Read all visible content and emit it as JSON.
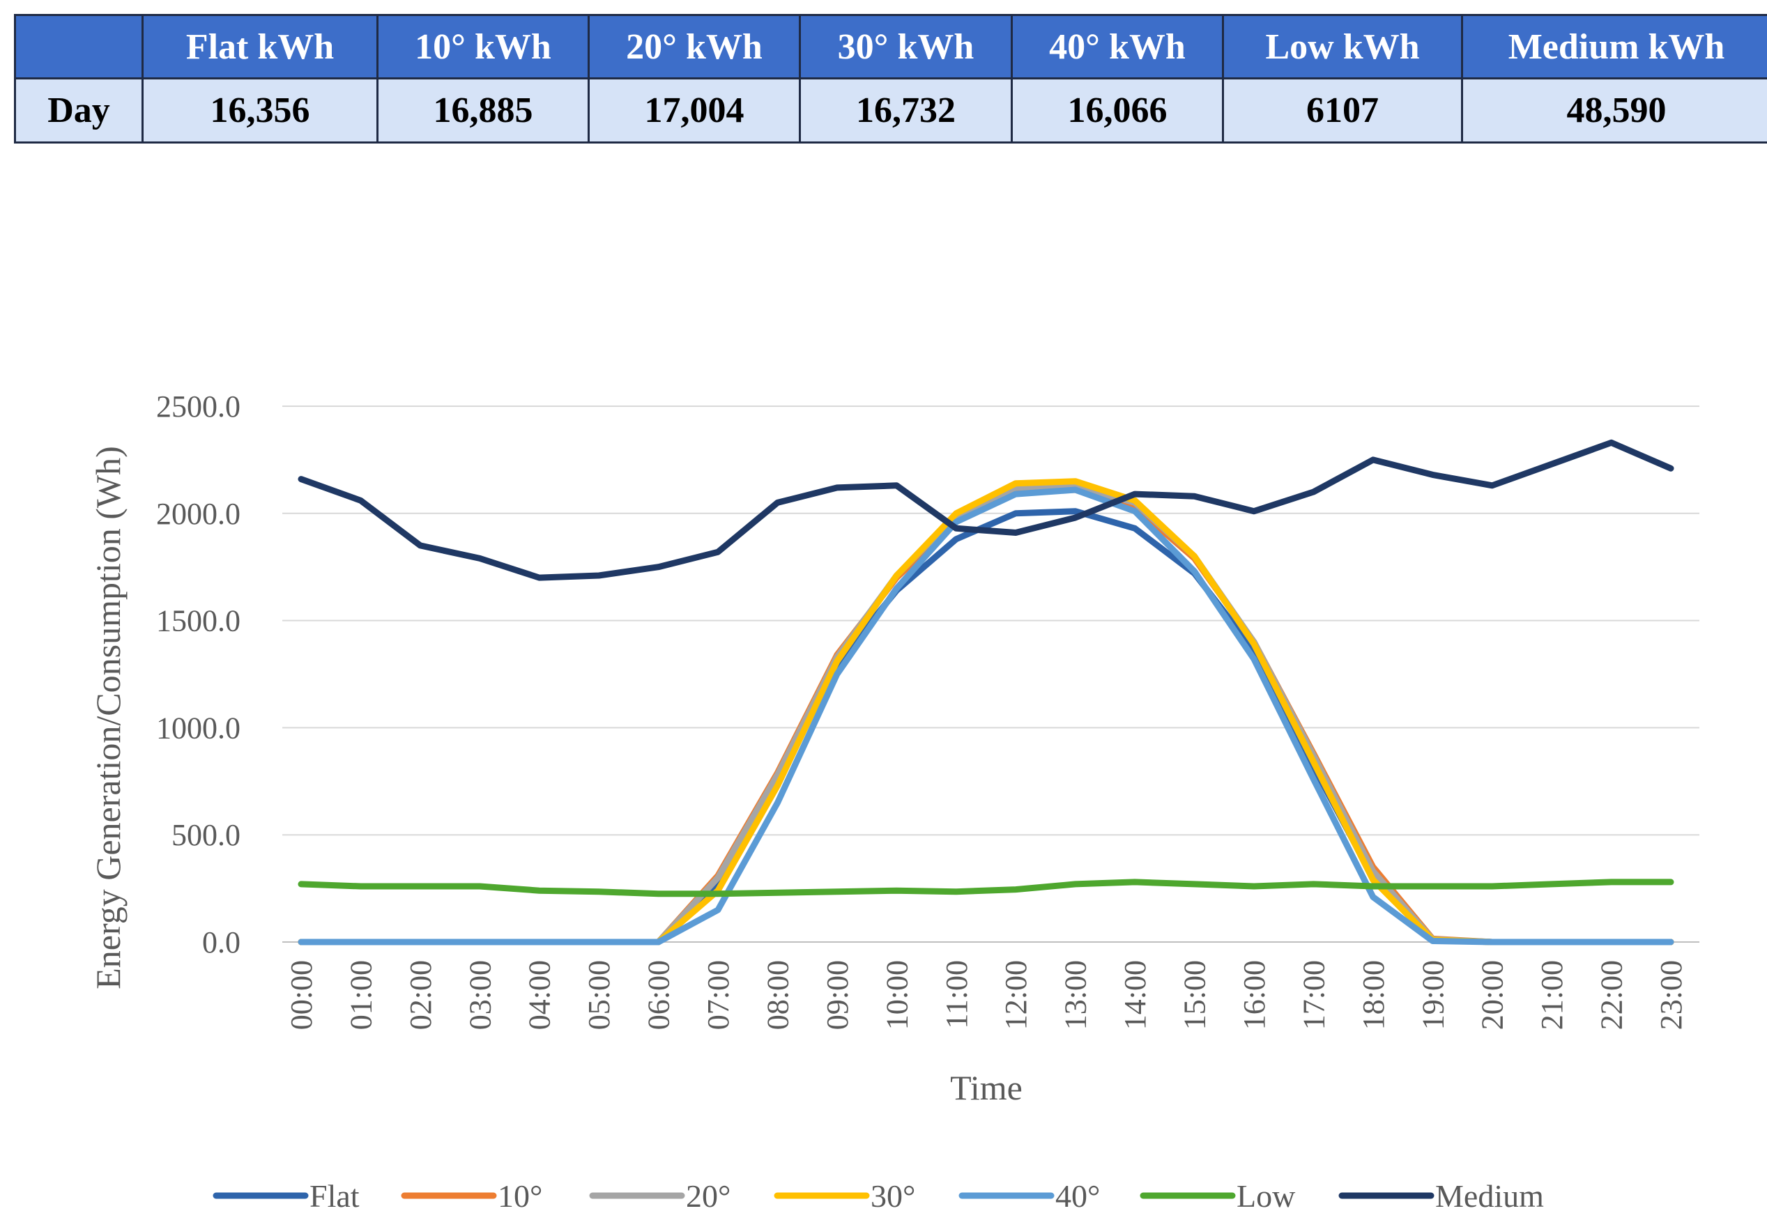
{
  "table": {
    "headers": [
      "",
      "Flat kWh",
      "10° kWh",
      "20° kWh",
      "30° kWh",
      "40° kWh",
      "Low kWh",
      "Medium kWh"
    ],
    "row": [
      "Day",
      "16,356",
      "16,885",
      "17,004",
      "16,732",
      "16,066",
      "6107",
      "48,590"
    ]
  },
  "chart_data": {
    "type": "line",
    "title": "",
    "xlabel": "Time",
    "ylabel": "Energy Generation/Consumption (Wh)",
    "ylim": [
      0,
      2500
    ],
    "yticks": [
      "0.0",
      "500.0",
      "1000.0",
      "1500.0",
      "2000.0",
      "2500.0"
    ],
    "grid": true,
    "legend_position": "bottom",
    "categories": [
      "00:00",
      "01:00",
      "02:00",
      "03:00",
      "04:00",
      "05:00",
      "06:00",
      "07:00",
      "08:00",
      "09:00",
      "10:00",
      "11:00",
      "12:00",
      "13:00",
      "14:00",
      "15:00",
      "16:00",
      "17:00",
      "18:00",
      "19:00",
      "20:00",
      "21:00",
      "22:00",
      "23:00"
    ],
    "series": [
      {
        "name": "Flat",
        "color": "#2e64ab",
        "values": [
          0,
          0,
          0,
          0,
          0,
          0,
          0,
          270,
          750,
          1300,
          1640,
          1880,
          2000,
          2010,
          1930,
          1720,
          1360,
          820,
          300,
          10,
          0,
          0,
          0,
          0
        ]
      },
      {
        "name": "10°",
        "color": "#ed7d31",
        "values": [
          0,
          0,
          0,
          0,
          0,
          0,
          0,
          310,
          790,
          1340,
          1700,
          1960,
          2100,
          2110,
          2030,
          1790,
          1400,
          880,
          350,
          15,
          0,
          0,
          0,
          0
        ]
      },
      {
        "name": "20°",
        "color": "#a5a5a5",
        "values": [
          0,
          0,
          0,
          0,
          0,
          0,
          0,
          300,
          780,
          1330,
          1710,
          1990,
          2120,
          2130,
          2050,
          1800,
          1400,
          870,
          330,
          12,
          0,
          0,
          0,
          0
        ]
      },
      {
        "name": "30°",
        "color": "#ffc000",
        "values": [
          0,
          0,
          0,
          0,
          0,
          0,
          0,
          240,
          730,
          1310,
          1710,
          2000,
          2140,
          2150,
          2060,
          1800,
          1390,
          840,
          290,
          10,
          0,
          0,
          0,
          0
        ]
      },
      {
        "name": "40°",
        "color": "#5b9bd5",
        "values": [
          0,
          0,
          0,
          0,
          0,
          0,
          0,
          150,
          650,
          1250,
          1650,
          1960,
          2090,
          2110,
          2010,
          1730,
          1320,
          760,
          210,
          5,
          0,
          0,
          0,
          0
        ]
      },
      {
        "name": "Low",
        "color": "#4ea72e",
        "values": [
          270,
          260,
          260,
          260,
          240,
          235,
          225,
          225,
          230,
          235,
          240,
          235,
          245,
          270,
          280,
          270,
          260,
          270,
          260,
          260,
          260,
          270,
          280,
          280
        ]
      },
      {
        "name": "Medium",
        "color": "#1f3864",
        "values": [
          2160,
          2060,
          1850,
          1790,
          1700,
          1710,
          1750,
          1820,
          2050,
          2120,
          2130,
          1930,
          1910,
          1980,
          2090,
          2080,
          2010,
          2100,
          2250,
          2180,
          2130,
          2230,
          2330,
          2210
        ]
      }
    ]
  }
}
